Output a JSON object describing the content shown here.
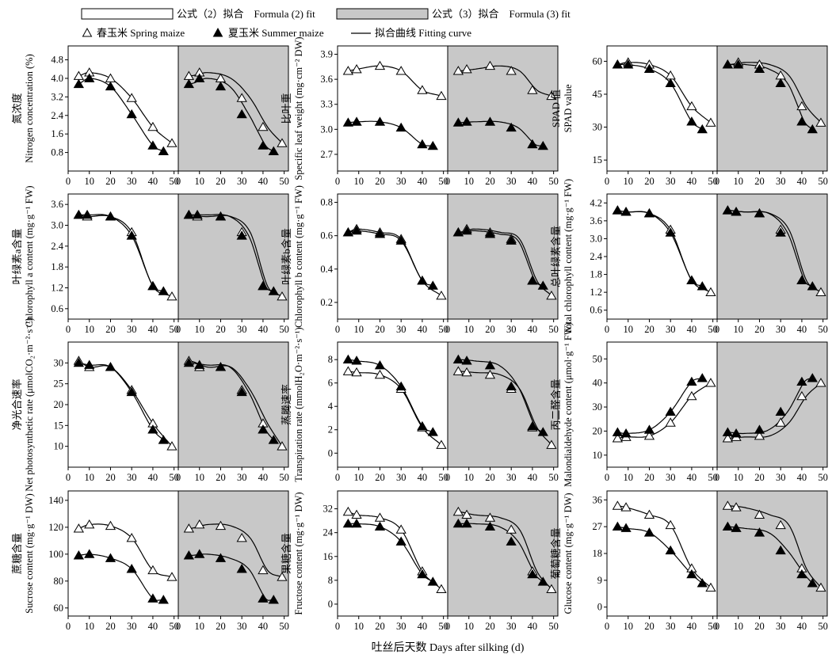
{
  "legend": {
    "formula2": "公式（2）拟合　Formula (2) fit",
    "formula3": "公式（3）拟合　Formula (3) fit",
    "spring": "春玉米 Spring maize",
    "summer": "夏玉米 Summer maize",
    "curve": "拟合曲线 Fitting curve"
  },
  "x_axis_label": "吐丝后天数 Days after silking (d)",
  "colors": {
    "fit3_background": "#c8c8c8",
    "axis": "#000000"
  },
  "chart_data": [
    {
      "type": "scatter",
      "ylabel_cn": "氮浓度",
      "ylabel_en": "Nitrogen concentration (%)",
      "ylim": [
        0,
        5.4
      ],
      "yticks": [
        "0.8",
        "1.6",
        "2.4",
        "3.2",
        "4.0",
        "4.8"
      ],
      "xlim": [
        0,
        52
      ],
      "xticks": [
        "0",
        "10",
        "20",
        "30",
        "40",
        "50"
      ],
      "spring": {
        "x": [
          5,
          10,
          20,
          30,
          40,
          49
        ],
        "y": [
          4.1,
          4.25,
          4.0,
          3.15,
          1.9,
          1.2
        ]
      },
      "summer": {
        "x": [
          5,
          10,
          20,
          30,
          40,
          45
        ],
        "y": [
          3.75,
          4.0,
          3.65,
          2.45,
          1.1,
          0.85
        ]
      }
    },
    {
      "type": "scatter",
      "ylabel_cn": "比叶重",
      "ylabel_en": "Specific leaf weight (mg·cm⁻² DW)",
      "ylim": [
        2.5,
        4.0
      ],
      "yticks": [
        "2.7",
        "3.0",
        "3.3",
        "3.6",
        "3.9"
      ],
      "xlim": [
        0,
        52
      ],
      "xticks": [
        "0",
        "10",
        "20",
        "30",
        "40",
        "50"
      ],
      "spring": {
        "x": [
          5,
          9,
          20,
          30,
          40,
          49
        ],
        "y": [
          3.7,
          3.72,
          3.76,
          3.7,
          3.47,
          3.4
        ]
      },
      "summer": {
        "x": [
          5,
          9,
          20,
          30,
          40,
          45
        ],
        "y": [
          3.08,
          3.09,
          3.09,
          3.02,
          2.82,
          2.8
        ]
      }
    },
    {
      "type": "scatter",
      "ylabel_cn": "SPAD 值",
      "ylabel_en": "SPAD value",
      "ylim": [
        10,
        67
      ],
      "yticks": [
        "15",
        "30",
        "45",
        "60"
      ],
      "xlim": [
        0,
        52
      ],
      "xticks": [
        "0",
        "10",
        "20",
        "30",
        "40",
        "50"
      ],
      "spring": {
        "x": [
          5,
          10,
          20,
          30,
          40,
          49
        ],
        "y": [
          58.5,
          59.5,
          58.5,
          53.5,
          39.5,
          32
        ]
      },
      "summer": {
        "x": [
          5,
          10,
          20,
          30,
          40,
          45
        ],
        "y": [
          58.5,
          58.5,
          56.5,
          50,
          32.5,
          29
        ]
      }
    },
    {
      "type": "scatter",
      "ylabel_cn": "叶绿素a含量",
      "ylabel_en": "Chlorophyll a content (mg·g⁻¹ FW)",
      "ylim": [
        0.3,
        3.9
      ],
      "yticks": [
        "0.6",
        "1.2",
        "1.8",
        "2.4",
        "3.0",
        "3.6"
      ],
      "xlim": [
        0,
        52
      ],
      "xticks": [
        "0",
        "10",
        "20",
        "30",
        "40",
        "50"
      ],
      "spring": {
        "x": [
          5,
          9,
          20,
          30,
          40,
          49
        ],
        "y": [
          3.3,
          3.25,
          3.25,
          2.8,
          1.25,
          0.95
        ]
      },
      "summer": {
        "x": [
          5,
          9,
          20,
          30,
          40,
          45
        ],
        "y": [
          3.3,
          3.3,
          3.25,
          2.7,
          1.25,
          1.1
        ]
      }
    },
    {
      "type": "scatter",
      "ylabel_cn": "叶绿素b含量",
      "ylabel_en": "Chlorophyll b content (mg·g⁻¹ FW)",
      "ylim": [
        0.1,
        0.85
      ],
      "yticks": [
        "0.2",
        "0.4",
        "0.6",
        "0.8"
      ],
      "xlim": [
        0,
        52
      ],
      "xticks": [
        "0",
        "10",
        "20",
        "30",
        "40",
        "50"
      ],
      "spring": {
        "x": [
          5,
          9,
          20,
          30,
          40,
          49
        ],
        "y": [
          0.62,
          0.64,
          0.62,
          0.58,
          0.33,
          0.24
        ]
      },
      "summer": {
        "x": [
          5,
          9,
          20,
          30,
          40,
          45
        ],
        "y": [
          0.62,
          0.63,
          0.61,
          0.57,
          0.33,
          0.3
        ]
      }
    },
    {
      "type": "scatter",
      "ylabel_cn": "总叶绿素含量",
      "ylabel_en": "Total chlorophyll content (mg·g⁻¹ FW)",
      "ylim": [
        0.3,
        4.5
      ],
      "yticks": [
        "0.6",
        "1.2",
        "1.8",
        "2.4",
        "3.0",
        "3.6",
        "4.2"
      ],
      "xlim": [
        0,
        52
      ],
      "xticks": [
        "0",
        "10",
        "20",
        "30",
        "40",
        "50"
      ],
      "spring": {
        "x": [
          5,
          9,
          20,
          30,
          40,
          49
        ],
        "y": [
          3.95,
          3.9,
          3.85,
          3.3,
          1.6,
          1.2
        ]
      },
      "summer": {
        "x": [
          5,
          9,
          20,
          30,
          40,
          45
        ],
        "y": [
          3.95,
          3.9,
          3.85,
          3.2,
          1.6,
          1.4
        ]
      }
    },
    {
      "type": "scatter",
      "ylabel_cn": "净光合速率",
      "ylabel_en": "Net photosynthetic rate (μmolCO₂·m⁻²·s⁻¹)",
      "ylim": [
        5,
        35
      ],
      "yticks": [
        "10",
        "15",
        "20",
        "25",
        "30"
      ],
      "xlim": [
        0,
        52
      ],
      "xticks": [
        "0",
        "10",
        "20",
        "30",
        "40",
        "50"
      ],
      "spring": {
        "x": [
          5,
          10,
          20,
          30,
          40,
          49
        ],
        "y": [
          30.5,
          29,
          29,
          23.5,
          15.5,
          10
        ]
      },
      "summer": {
        "x": [
          5,
          10,
          20,
          30,
          40,
          45
        ],
        "y": [
          30,
          29.5,
          29,
          23,
          14,
          11.5
        ]
      }
    },
    {
      "type": "scatter",
      "ylabel_cn": "蒸腾速率",
      "ylabel_en": "Transpiration rate (mmolH₂O·m⁻²·s⁻¹)",
      "ylim": [
        -1.2,
        9.5
      ],
      "yticks": [
        "0",
        "2",
        "4",
        "6",
        "8"
      ],
      "xlim": [
        0,
        52
      ],
      "xticks": [
        "0",
        "10",
        "20",
        "30",
        "40",
        "50"
      ],
      "spring": {
        "x": [
          5,
          9,
          20,
          30,
          40,
          49
        ],
        "y": [
          7.0,
          6.9,
          6.7,
          5.5,
          2.2,
          0.7
        ]
      },
      "summer": {
        "x": [
          5,
          9,
          20,
          30,
          40,
          45
        ],
        "y": [
          8.0,
          7.9,
          7.5,
          5.7,
          2.3,
          1.8
        ]
      }
    },
    {
      "type": "scatter",
      "ylabel_cn": "丙二醛含量",
      "ylabel_en": "Malondialdehyde content (μmol·g⁻¹ FW)",
      "ylim": [
        5,
        57
      ],
      "yticks": [
        "10",
        "20",
        "30",
        "40",
        "50"
      ],
      "xlim": [
        0,
        52
      ],
      "xticks": [
        "0",
        "10",
        "20",
        "30",
        "40",
        "50"
      ],
      "spring": {
        "x": [
          5,
          9,
          20,
          30,
          40,
          49
        ],
        "y": [
          17,
          17.5,
          18,
          23.5,
          34.5,
          40
        ]
      },
      "summer": {
        "x": [
          5,
          9,
          20,
          30,
          40,
          45
        ],
        "y": [
          19.5,
          19,
          20.5,
          28,
          40.5,
          42
        ]
      }
    },
    {
      "type": "scatter",
      "ylabel_cn": "蔗糖含量",
      "ylabel_en": "Sucrose content (mg·g⁻¹ DW)",
      "ylim": [
        54,
        147
      ],
      "yticks": [
        "60",
        "80",
        "100",
        "120",
        "140"
      ],
      "xlim": [
        0,
        52
      ],
      "xticks": [
        "0",
        "10",
        "20",
        "30",
        "40",
        "50"
      ],
      "spring": {
        "x": [
          5,
          10,
          20,
          30,
          40,
          49
        ],
        "y": [
          119,
          122,
          121,
          112,
          88,
          83
        ]
      },
      "summer": {
        "x": [
          5,
          10,
          20,
          30,
          40,
          45
        ],
        "y": [
          99,
          100,
          97,
          89,
          67,
          66
        ]
      }
    },
    {
      "type": "scatter",
      "ylabel_cn": "果糖含量",
      "ylabel_en": "Fructose content (mg·g⁻¹ DW)",
      "ylim": [
        -4,
        38
      ],
      "yticks": [
        "0",
        "8",
        "16",
        "24",
        "32"
      ],
      "xlim": [
        0,
        52
      ],
      "xticks": [
        "0",
        "10",
        "20",
        "30",
        "40",
        "50"
      ],
      "spring": {
        "x": [
          5,
          9,
          20,
          30,
          40,
          49
        ],
        "y": [
          31,
          30,
          29,
          25,
          11,
          5
        ]
      },
      "summer": {
        "x": [
          5,
          9,
          20,
          30,
          40,
          45
        ],
        "y": [
          27,
          27,
          26,
          21,
          10,
          7.5
        ]
      }
    },
    {
      "type": "scatter",
      "ylabel_cn": "葡萄糖含量",
      "ylabel_en": "Glucose content (mg·g⁻¹ DW)",
      "ylim": [
        -3,
        39
      ],
      "yticks": [
        "0",
        "9",
        "18",
        "27",
        "36"
      ],
      "xlim": [
        0,
        52
      ],
      "xticks": [
        "0",
        "10",
        "20",
        "30",
        "40",
        "50"
      ],
      "spring": {
        "x": [
          5,
          9,
          20,
          30,
          40,
          49
        ],
        "y": [
          34,
          33.5,
          31,
          27.5,
          13,
          6.5
        ]
      },
      "summer": {
        "x": [
          5,
          9,
          20,
          30,
          40,
          45
        ],
        "y": [
          27,
          26.5,
          25,
          19,
          11,
          8
        ]
      }
    }
  ]
}
